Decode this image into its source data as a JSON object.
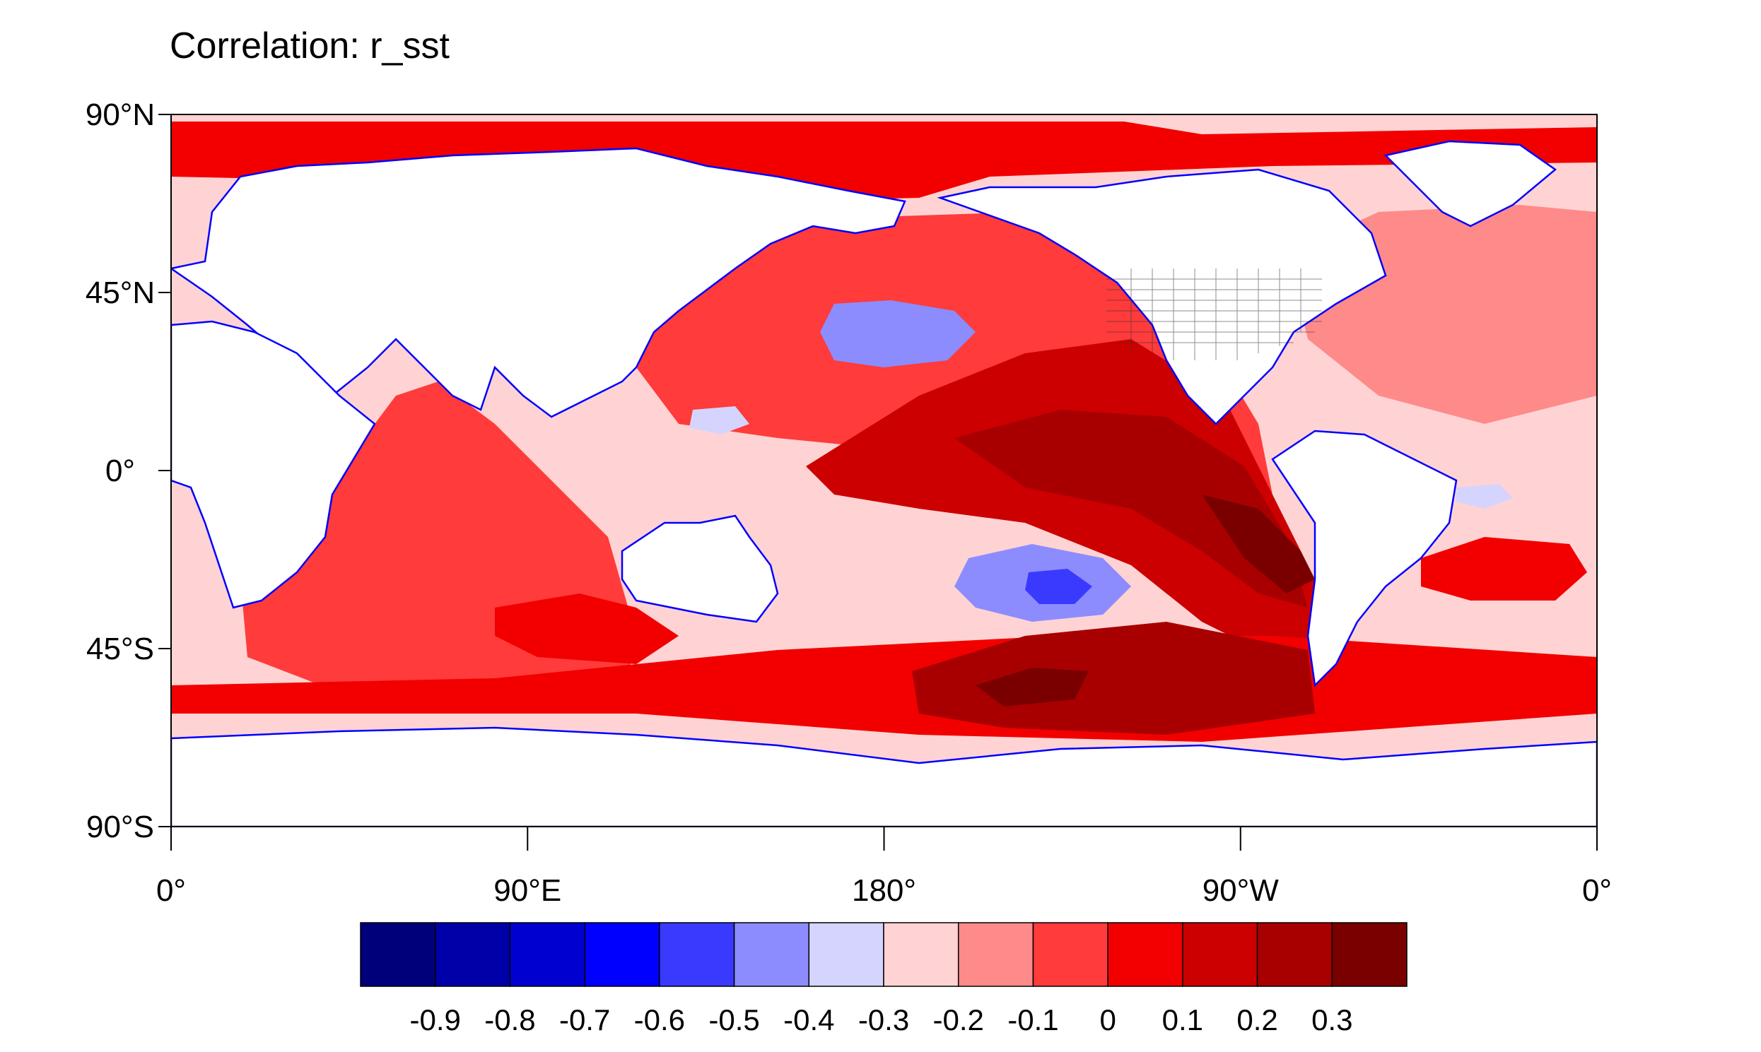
{
  "title": "Correlation: r_sst",
  "map": {
    "projection": "cylindrical-equidistant",
    "lon_range": [
      0,
      360
    ],
    "lat_range": [
      -90,
      90
    ],
    "lat_ticks": [
      {
        "value": 90,
        "label": "90°N"
      },
      {
        "value": 45,
        "label": "45°N"
      },
      {
        "value": 0,
        "label": "0°"
      },
      {
        "value": -45,
        "label": "45°S"
      },
      {
        "value": -90,
        "label": "90°S"
      }
    ],
    "lon_ticks": [
      {
        "value": 0,
        "label": "0°"
      },
      {
        "value": 90,
        "label": "90°E"
      },
      {
        "value": 180,
        "label": "180°"
      },
      {
        "value": 270,
        "label": "90°W"
      },
      {
        "value": 360,
        "label": "0°"
      }
    ],
    "coastline_color": "#0000ff",
    "land_color": "#ffffff",
    "ocean_default_color": "#ffd3d3"
  },
  "colorbar": {
    "colors": [
      "#00007a",
      "#0000a8",
      "#0000d0",
      "#0000ff",
      "#3a3aff",
      "#8c8cff",
      "#d4d4ff",
      "#ffd3d3",
      "#ff8a8a",
      "#ff3b3b",
      "#f20000",
      "#cc0000",
      "#a80000",
      "#7a0000"
    ],
    "labels": [
      "-0.9",
      "-0.8",
      "-0.7",
      "-0.6",
      "-0.5",
      "-0.4",
      "-0.3",
      "-0.2",
      "-0.1",
      "0",
      "0.1",
      "0.2",
      "0.3"
    ]
  },
  "regions": [
    {
      "name": "arctic-ocean",
      "level": 10
    },
    {
      "name": "north-pacific-band",
      "level": 9
    },
    {
      "name": "north-pacific-low",
      "level": 5
    },
    {
      "name": "central-pacific-tongue",
      "level": 11
    },
    {
      "name": "east-pacific-core",
      "level": 12
    },
    {
      "name": "east-pacific-max",
      "level": 13
    },
    {
      "name": "west-pacific-low",
      "level": 6
    },
    {
      "name": "indian-ocean",
      "level": 9
    },
    {
      "name": "indian-ocean-core",
      "level": 10
    },
    {
      "name": "south-pacific-low",
      "level": 5
    },
    {
      "name": "south-pacific-min",
      "level": 4
    },
    {
      "name": "southern-ocean-band",
      "level": 10
    },
    {
      "name": "southern-ocean-core",
      "level": 12
    },
    {
      "name": "southern-ocean-max",
      "level": 13
    },
    {
      "name": "north-atlantic",
      "level": 8
    },
    {
      "name": "south-atlantic-core",
      "level": 10
    },
    {
      "name": "atlantic-low",
      "level": 6
    }
  ]
}
